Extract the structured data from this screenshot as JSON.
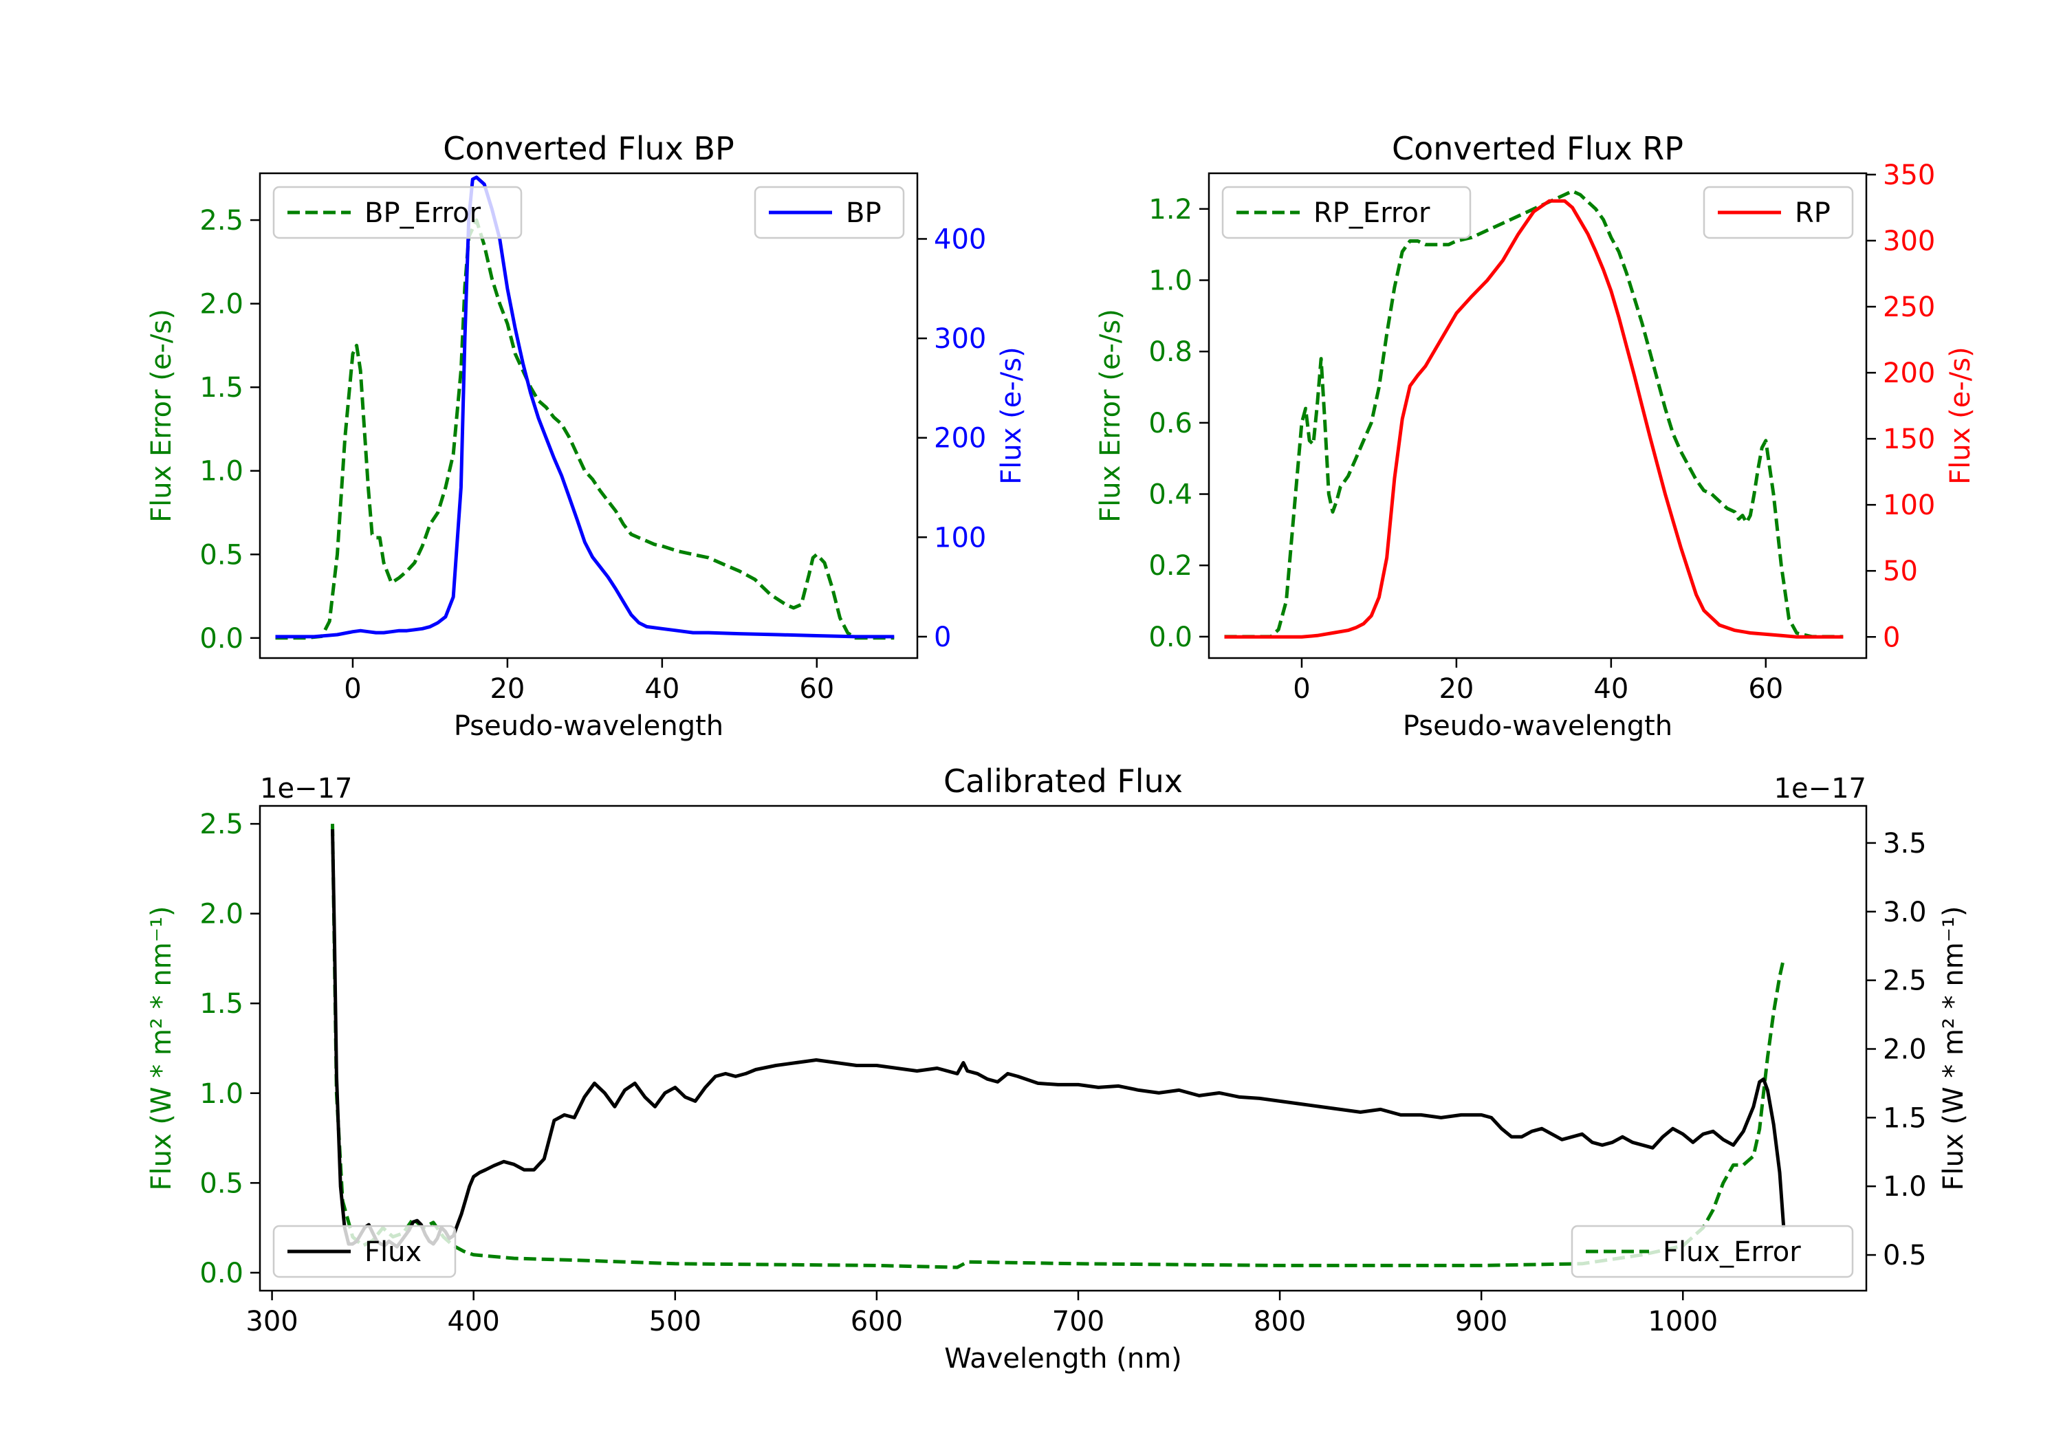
{
  "chart_data": [
    {
      "type": "line",
      "title": "Converted Flux BP",
      "xlabel": "Pseudo-wavelength",
      "ylabel_left": "Flux Error (e-/s)",
      "ylabel_right": "Flux (e-/s)",
      "xlim": [
        -12.0,
        73.0
      ],
      "ylim_left": [
        -0.12,
        2.78
      ],
      "ylim_right": [
        -21.5,
        466.0
      ],
      "xticks": [
        0,
        20,
        40,
        60
      ],
      "yticks_left": [
        0.0,
        0.5,
        1.0,
        1.5,
        2.0,
        2.5
      ],
      "yticks_right": [
        0,
        100,
        200,
        300,
        400
      ],
      "left_color": "#008000",
      "right_color": "#0000ff",
      "series": [
        {
          "name": "BP_Error",
          "axis": "left",
          "style": "dashed",
          "color": "#008000",
          "x": [
            -10,
            -6,
            -4,
            -3,
            -2,
            -1,
            0,
            0.5,
            1,
            2,
            2.5,
            3,
            3.5,
            4,
            5,
            6,
            7,
            8,
            9,
            10,
            11,
            12,
            13,
            14,
            14.5,
            15,
            16,
            17,
            18,
            19,
            20,
            21,
            22,
            23,
            24,
            25,
            26,
            27,
            28,
            29,
            30,
            31,
            32,
            33,
            34,
            35,
            36,
            37,
            38,
            39,
            40,
            42,
            44,
            46,
            48,
            50,
            52,
            54,
            56,
            57,
            58,
            59,
            59.5,
            60,
            61,
            62,
            63,
            64,
            65,
            66,
            68,
            70
          ],
          "y": [
            0.0,
            0.0,
            0.01,
            0.1,
            0.5,
            1.2,
            1.7,
            1.75,
            1.6,
            0.9,
            0.62,
            0.6,
            0.6,
            0.45,
            0.33,
            0.36,
            0.4,
            0.45,
            0.55,
            0.68,
            0.75,
            0.9,
            1.1,
            1.6,
            2.1,
            2.4,
            2.5,
            2.35,
            2.15,
            2.0,
            1.88,
            1.7,
            1.6,
            1.5,
            1.42,
            1.38,
            1.32,
            1.28,
            1.2,
            1.1,
            1.0,
            0.95,
            0.88,
            0.82,
            0.76,
            0.68,
            0.62,
            0.6,
            0.58,
            0.56,
            0.55,
            0.52,
            0.5,
            0.48,
            0.44,
            0.4,
            0.35,
            0.26,
            0.2,
            0.18,
            0.2,
            0.38,
            0.48,
            0.5,
            0.45,
            0.3,
            0.12,
            0.03,
            0.0,
            0.0,
            0.0,
            0.0
          ]
        },
        {
          "name": "BP",
          "axis": "right",
          "style": "solid",
          "color": "#0000ff",
          "x": [
            -10,
            -5,
            -2,
            0,
            1,
            2,
            3,
            4,
            5,
            6,
            7,
            8,
            9,
            10,
            11,
            12,
            13,
            14,
            14.5,
            15,
            15.5,
            16,
            17,
            18,
            19,
            20,
            21,
            22,
            23,
            24,
            25,
            26,
            27,
            28,
            29,
            30,
            31,
            32,
            33,
            34,
            35,
            36,
            37,
            38,
            40,
            42,
            44,
            46,
            50,
            55,
            60,
            65,
            70
          ],
          "y": [
            0,
            0,
            2,
            5,
            6,
            5,
            4,
            4,
            5,
            6,
            6,
            7,
            8,
            10,
            14,
            20,
            40,
            150,
            300,
            420,
            460,
            462,
            455,
            430,
            400,
            350,
            310,
            275,
            245,
            220,
            200,
            180,
            162,
            140,
            118,
            95,
            80,
            70,
            60,
            48,
            35,
            22,
            14,
            10,
            8,
            6,
            4,
            4,
            3,
            2,
            1,
            0,
            0
          ]
        }
      ],
      "legends": [
        {
          "label": "BP_Error",
          "placement": "upper-left"
        },
        {
          "label": "BP",
          "placement": "upper-right"
        }
      ]
    },
    {
      "type": "line",
      "title": "Converted Flux RP",
      "xlabel": "Pseudo-wavelength",
      "ylabel_left": "Flux Error (e-/s)",
      "ylabel_right": "Flux (e-/s)",
      "xlim": [
        -12.0,
        73.0
      ],
      "ylim_left": [
        -0.06,
        1.3
      ],
      "ylim_right": [
        -16.0,
        351.0
      ],
      "xticks": [
        0,
        20,
        40,
        60
      ],
      "yticks_left": [
        0.0,
        0.2,
        0.4,
        0.6,
        0.8,
        1.0,
        1.2
      ],
      "yticks_right": [
        0,
        50,
        100,
        150,
        200,
        250,
        300,
        350
      ],
      "left_color": "#008000",
      "right_color": "#ff0000",
      "series": [
        {
          "name": "RP_Error",
          "axis": "left",
          "style": "dashed",
          "color": "#008000",
          "x": [
            -10,
            -4,
            -3,
            -2,
            -1,
            0,
            0.5,
            1,
            1.5,
            2,
            2.5,
            3,
            3.5,
            4,
            4.5,
            5,
            6,
            7,
            8,
            9,
            10,
            11,
            12,
            13,
            14,
            15,
            16,
            17,
            18,
            19,
            20,
            22,
            24,
            26,
            28,
            30,
            32,
            34,
            35,
            36,
            37,
            38,
            39,
            40,
            41,
            42,
            43,
            44,
            45,
            46,
            47,
            48,
            49,
            50,
            51,
            52,
            53,
            54,
            55,
            56,
            56.5,
            57,
            57.5,
            58,
            58.5,
            59,
            59.5,
            60,
            61,
            62,
            63,
            64,
            66,
            70
          ],
          "y": [
            0.0,
            0.0,
            0.02,
            0.1,
            0.35,
            0.6,
            0.64,
            0.55,
            0.54,
            0.65,
            0.78,
            0.6,
            0.4,
            0.35,
            0.38,
            0.42,
            0.45,
            0.5,
            0.55,
            0.6,
            0.7,
            0.85,
            0.98,
            1.08,
            1.11,
            1.11,
            1.1,
            1.1,
            1.1,
            1.1,
            1.11,
            1.12,
            1.14,
            1.16,
            1.18,
            1.2,
            1.22,
            1.24,
            1.25,
            1.24,
            1.22,
            1.2,
            1.17,
            1.12,
            1.08,
            1.02,
            0.95,
            0.88,
            0.8,
            0.72,
            0.64,
            0.57,
            0.52,
            0.48,
            0.44,
            0.41,
            0.4,
            0.38,
            0.36,
            0.35,
            0.33,
            0.34,
            0.32,
            0.34,
            0.4,
            0.47,
            0.53,
            0.55,
            0.4,
            0.2,
            0.05,
            0.01,
            0.0,
            0.0
          ]
        },
        {
          "name": "RP",
          "axis": "right",
          "style": "solid",
          "color": "#ff0000",
          "x": [
            -10,
            -2,
            0,
            2,
            4,
            6,
            7,
            8,
            9,
            10,
            11,
            12,
            13,
            14,
            15,
            16,
            18,
            20,
            22,
            24,
            26,
            28,
            30,
            32,
            34,
            35,
            36,
            37,
            38,
            39,
            40,
            41,
            42,
            43,
            44,
            45,
            46,
            47,
            48,
            49,
            50,
            51,
            52,
            54,
            56,
            58,
            60,
            62,
            64,
            70
          ],
          "y": [
            0,
            0,
            0,
            1,
            3,
            5,
            7,
            10,
            16,
            30,
            60,
            120,
            165,
            190,
            198,
            205,
            225,
            245,
            258,
            270,
            285,
            305,
            322,
            330,
            330,
            325,
            315,
            305,
            292,
            278,
            262,
            242,
            220,
            198,
            175,
            152,
            130,
            108,
            88,
            68,
            50,
            32,
            20,
            9,
            5,
            3,
            2,
            1,
            0,
            0
          ]
        }
      ],
      "legends": [
        {
          "label": "RP_Error",
          "placement": "upper-left"
        },
        {
          "label": "RP",
          "placement": "upper-right"
        }
      ]
    },
    {
      "type": "line",
      "title": "Calibrated Flux",
      "xlabel": "Wavelength (nm)",
      "ylabel_left": "Flux (W * m² * nm⁻¹)",
      "ylabel_right": "Flux (W * m² * nm⁻¹)",
      "offset_left": "1e−17",
      "offset_right": "1e−17",
      "xlim": [
        294.0,
        1091.0
      ],
      "ylim_left": [
        -0.1,
        2.6
      ],
      "ylim_right": [
        0.24,
        3.77
      ],
      "xticks": [
        300,
        400,
        500,
        600,
        700,
        800,
        900,
        1000
      ],
      "yticks_left": [
        0.0,
        0.5,
        1.0,
        1.5,
        2.0,
        2.5
      ],
      "yticks_right": [
        0.5,
        1.0,
        1.5,
        2.0,
        2.5,
        3.0,
        3.5
      ],
      "left_color": "#008000",
      "right_color": "#000000",
      "series": [
        {
          "name": "Flux_Error",
          "axis": "left",
          "style": "dashed",
          "color": "#008000",
          "x": [
            330,
            332,
            335,
            340,
            345,
            350,
            355,
            360,
            365,
            370,
            375,
            380,
            385,
            390,
            395,
            400,
            420,
            450,
            500,
            600,
            640,
            645,
            700,
            800,
            900,
            950,
            980,
            1000,
            1010,
            1015,
            1020,
            1025,
            1030,
            1035,
            1038,
            1040,
            1042,
            1045,
            1048,
            1050
          ],
          "y": [
            2.5,
            1.0,
            0.4,
            0.2,
            0.15,
            0.18,
            0.25,
            0.2,
            0.22,
            0.3,
            0.25,
            0.28,
            0.2,
            0.15,
            0.12,
            0.1,
            0.08,
            0.07,
            0.05,
            0.04,
            0.03,
            0.06,
            0.05,
            0.04,
            0.04,
            0.05,
            0.1,
            0.15,
            0.25,
            0.35,
            0.5,
            0.6,
            0.6,
            0.65,
            0.8,
            1.0,
            1.2,
            1.45,
            1.65,
            1.75
          ]
        },
        {
          "name": "Flux",
          "axis": "right",
          "style": "solid",
          "color": "#000000",
          "x": [
            330,
            331,
            332,
            334,
            336,
            338,
            340,
            342,
            344,
            346,
            348,
            350,
            352,
            354,
            356,
            358,
            360,
            362,
            364,
            366,
            368,
            370,
            372,
            374,
            376,
            378,
            380,
            382,
            384,
            386,
            388,
            390,
            392,
            394,
            396,
            398,
            400,
            403,
            406,
            410,
            415,
            420,
            425,
            430,
            435,
            440,
            445,
            450,
            455,
            460,
            465,
            470,
            475,
            480,
            485,
            490,
            495,
            500,
            505,
            510,
            515,
            520,
            525,
            530,
            535,
            540,
            550,
            560,
            570,
            580,
            590,
            600,
            610,
            620,
            630,
            640,
            643,
            645,
            650,
            655,
            660,
            665,
            670,
            680,
            690,
            700,
            710,
            720,
            730,
            740,
            750,
            760,
            770,
            780,
            790,
            800,
            810,
            820,
            830,
            840,
            850,
            860,
            870,
            880,
            890,
            900,
            905,
            910,
            915,
            920,
            925,
            930,
            935,
            940,
            945,
            950,
            955,
            960,
            965,
            970,
            975,
            980,
            985,
            990,
            995,
            1000,
            1005,
            1010,
            1015,
            1020,
            1025,
            1030,
            1035,
            1038,
            1040,
            1042,
            1045,
            1048,
            1050
          ],
          "y": [
            3.6,
            2.8,
            1.8,
            1.0,
            0.7,
            0.58,
            0.58,
            0.6,
            0.65,
            0.7,
            0.72,
            0.66,
            0.6,
            0.58,
            0.57,
            0.6,
            0.58,
            0.56,
            0.6,
            0.64,
            0.68,
            0.74,
            0.75,
            0.72,
            0.65,
            0.6,
            0.58,
            0.62,
            0.7,
            0.67,
            0.62,
            0.64,
            0.72,
            0.8,
            0.9,
            1.0,
            1.07,
            1.1,
            1.12,
            1.15,
            1.18,
            1.16,
            1.12,
            1.12,
            1.2,
            1.48,
            1.52,
            1.5,
            1.65,
            1.75,
            1.68,
            1.58,
            1.7,
            1.75,
            1.65,
            1.58,
            1.68,
            1.72,
            1.65,
            1.62,
            1.72,
            1.8,
            1.82,
            1.8,
            1.82,
            1.85,
            1.88,
            1.9,
            1.92,
            1.9,
            1.88,
            1.88,
            1.86,
            1.84,
            1.86,
            1.82,
            1.9,
            1.84,
            1.82,
            1.78,
            1.76,
            1.82,
            1.8,
            1.75,
            1.74,
            1.74,
            1.72,
            1.73,
            1.7,
            1.68,
            1.7,
            1.66,
            1.68,
            1.65,
            1.64,
            1.62,
            1.6,
            1.58,
            1.56,
            1.54,
            1.56,
            1.52,
            1.52,
            1.5,
            1.52,
            1.52,
            1.5,
            1.42,
            1.36,
            1.36,
            1.4,
            1.42,
            1.38,
            1.34,
            1.36,
            1.38,
            1.32,
            1.3,
            1.32,
            1.36,
            1.32,
            1.3,
            1.28,
            1.36,
            1.42,
            1.38,
            1.32,
            1.38,
            1.4,
            1.34,
            1.3,
            1.4,
            1.58,
            1.76,
            1.78,
            1.7,
            1.45,
            1.1,
            0.7
          ]
        }
      ],
      "legends": [
        {
          "label": "Flux",
          "placement": "lower-left"
        },
        {
          "label": "Flux_Error",
          "placement": "lower-right"
        }
      ]
    }
  ]
}
